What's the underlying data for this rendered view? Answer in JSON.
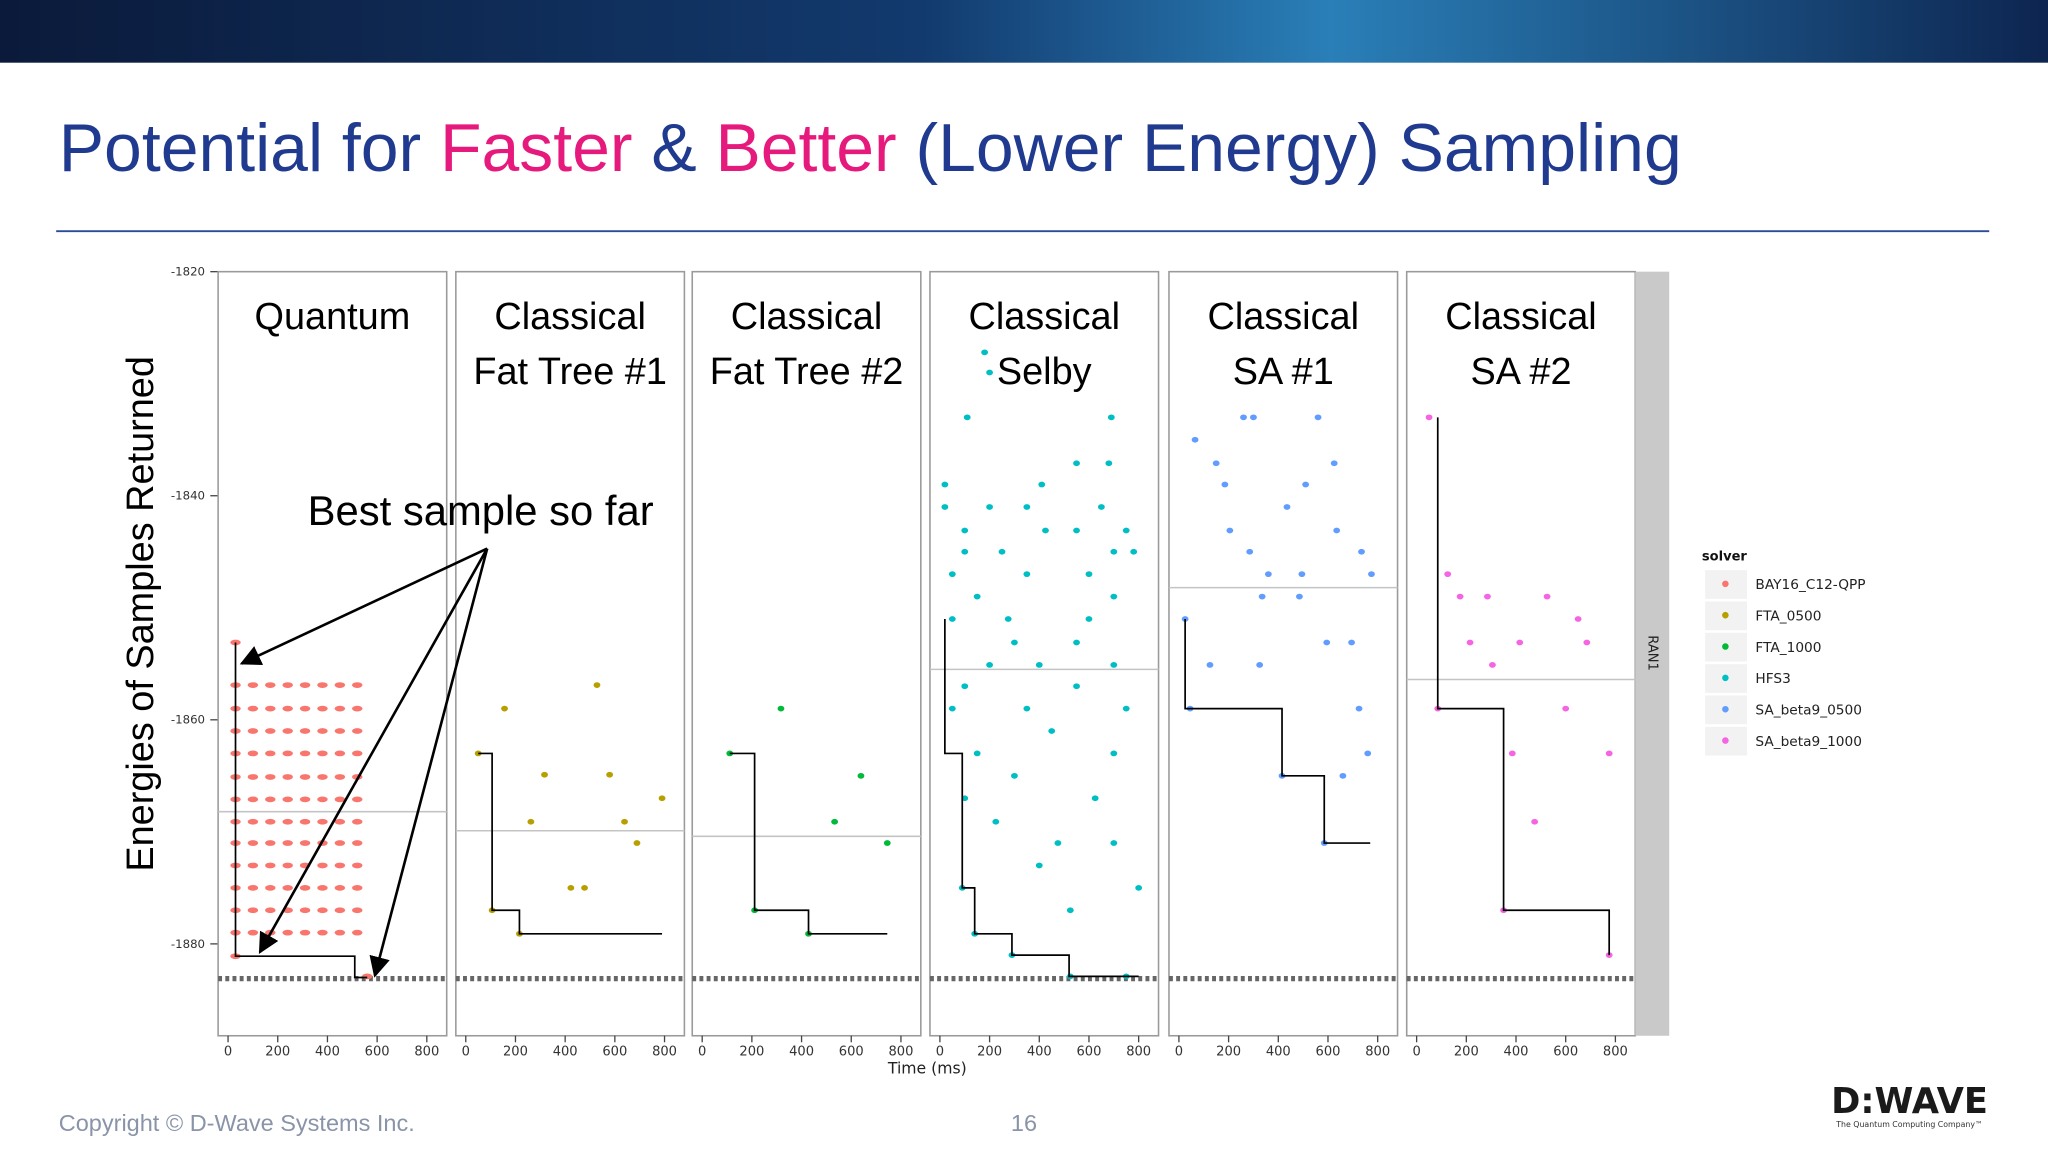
{
  "slide": {
    "title_parts": [
      {
        "text": "Potential for ",
        "color": "#1f3a8f"
      },
      {
        "text": "Faster",
        "color": "#e6197d"
      },
      {
        "text": " & ",
        "color": "#1f3a8f"
      },
      {
        "text": "Better",
        "color": "#e6197d"
      },
      {
        "text": " (Lower Energy) Sampling",
        "color": "#1f3a8f"
      }
    ],
    "copyright": "Copyright © D-Wave Systems Inc.",
    "page_number": "16",
    "logo": "D:WAVE",
    "logo_tagline": "The Quantum Computing Company™"
  },
  "chart_data": {
    "type": "scatter",
    "y_label": "Energies of Samples Returned",
    "x_label": "Time (ms)",
    "legend_title": "solver",
    "strip_label": "RAN1",
    "annotation": "Best sample so far",
    "xlim": [
      -40,
      880
    ],
    "xticks": [
      0,
      200,
      400,
      600,
      800
    ],
    "ylim": [
      -1888.2,
      -1820
    ],
    "yticks": [
      -1820,
      -1840,
      -1860,
      -1880
    ],
    "reference_line": -1883.1,
    "facets": [
      {
        "title_lines": [
          "Quantum"
        ],
        "mean_line": -1868.2,
        "series": [
          {
            "name": "BAY16_C12-QPP",
            "color": "#f8766d",
            "x": [
              30,
              100,
              170,
              240,
              310,
              380,
              450,
              520,
              30,
              100,
              170,
              240,
              310,
              380,
              450,
              520,
              30,
              100,
              170,
              240,
              310,
              380,
              450,
              520,
              30,
              100,
              170,
              240,
              310,
              380,
              450,
              520,
              30,
              100,
              170,
              240,
              310,
              380,
              450,
              520,
              30,
              100,
              170,
              240,
              310,
              380,
              450,
              520,
              30,
              100,
              170,
              240,
              310,
              380,
              450,
              520,
              30,
              100,
              170,
              240,
              310,
              380,
              450,
              520,
              30,
              100,
              170,
              240,
              310,
              380,
              450,
              520,
              30,
              100,
              170,
              240,
              310,
              380,
              450,
              520,
              30,
              100,
              170,
              240,
              310,
              380,
              450,
              520,
              30,
              100,
              170,
              240,
              310,
              380,
              450,
              520,
              30,
              30,
              560
            ],
            "values": [
              -1856.9,
              -1856.9,
              -1856.9,
              -1856.9,
              -1856.9,
              -1856.9,
              -1856.9,
              -1856.9,
              -1859,
              -1859,
              -1859,
              -1859,
              -1859,
              -1859,
              -1859,
              -1859,
              -1861,
              -1861,
              -1861,
              -1861,
              -1861,
              -1861,
              -1861,
              -1861,
              -1863,
              -1863,
              -1863,
              -1863,
              -1863,
              -1863,
              -1863,
              -1863,
              -1865.1,
              -1865.1,
              -1865.1,
              -1865.1,
              -1865.1,
              -1865.1,
              -1865.1,
              -1865.1,
              -1867.1,
              -1867.1,
              -1867.1,
              -1867.1,
              -1867.1,
              -1867.1,
              -1867.1,
              -1867.1,
              -1869.1,
              -1869.1,
              -1869.1,
              -1869.1,
              -1869.1,
              -1869.1,
              -1869.1,
              -1869.1,
              -1871,
              -1871,
              -1871,
              -1871,
              -1871,
              -1871,
              -1871,
              -1871,
              -1873,
              -1873,
              -1873,
              -1873,
              -1873,
              -1873,
              -1873,
              -1873,
              -1875,
              -1875,
              -1875,
              -1875,
              -1875,
              -1875,
              -1875,
              -1875,
              -1877,
              -1877,
              -1877,
              -1877,
              -1877,
              -1877,
              -1877,
              -1877,
              -1879,
              -1879,
              -1879,
              -1879,
              -1879,
              -1879,
              -1879,
              -1879,
              -1853.1,
              -1881.1,
              -1882.9
            ]
          }
        ],
        "step": {
          "x": [
            30,
            30,
            510,
            510,
            560
          ],
          "values": [
            -1853.1,
            -1881.1,
            -1881.1,
            -1883,
            -1883
          ]
        }
      },
      {
        "title_lines": [
          "Classical",
          "Fat Tree #1"
        ],
        "mean_line": -1869.9,
        "series": [
          {
            "name": "FTA_0500",
            "color": "#b79f00",
            "x": [
              50,
              156,
              106,
              216,
              317,
              262,
              528,
              423,
              478,
              639,
              689,
              790,
              579
            ],
            "values": [
              -1863,
              -1859,
              -1877,
              -1879.1,
              -1864.9,
              -1869.1,
              -1856.9,
              -1875,
              -1875,
              -1869.1,
              -1871,
              -1867,
              -1864.9
            ]
          }
        ],
        "step": {
          "x": [
            50,
            106,
            106,
            216,
            216,
            790
          ],
          "values": [
            -1863,
            -1863,
            -1877,
            -1877,
            -1879.1,
            -1879.1
          ]
        }
      },
      {
        "title_lines": [
          "Classical",
          "Fat Tree #2"
        ],
        "mean_line": -1870.4,
        "series": [
          {
            "name": "FTA_1000",
            "color": "#00ba38",
            "x": [
              111,
              317,
              211,
              428,
              639,
              533,
              745
            ],
            "values": [
              -1863,
              -1859,
              -1877,
              -1879.1,
              -1865,
              -1869.1,
              -1871
            ]
          }
        ],
        "step": {
          "x": [
            111,
            211,
            211,
            428,
            428,
            745
          ],
          "values": [
            -1863,
            -1863,
            -1877,
            -1877,
            -1879.1,
            -1879.1
          ]
        }
      },
      {
        "title_lines": [
          "Classical",
          "Selby"
        ],
        "mean_line": -1855.5,
        "series": [
          {
            "name": "HFS3",
            "color": "#00bfc4",
            "x": [
              110,
              180,
              200,
              690,
              550,
              680,
              20,
              410,
              20,
              200,
              350,
              650,
              100,
              425,
              550,
              750,
              100,
              250,
              700,
              780,
              50,
              350,
              600,
              150,
              700,
              50,
              275,
              600,
              300,
              550,
              200,
              400,
              700,
              100,
              550,
              50,
              350,
              750,
              450,
              150,
              700,
              300,
              100,
              625,
              225,
              475,
              700,
              400,
              800,
              525,
              90,
              140,
              290,
              525,
              750
            ],
            "values": [
              -1833,
              -1827.2,
              -1829,
              -1833,
              -1837.1,
              -1837.1,
              -1839,
              -1839,
              -1841,
              -1841,
              -1841,
              -1841,
              -1843.1,
              -1843.1,
              -1843.1,
              -1843.1,
              -1845,
              -1845,
              -1845,
              -1845,
              -1847,
              -1847,
              -1847,
              -1849,
              -1849,
              -1851,
              -1851,
              -1851,
              -1853.1,
              -1853.1,
              -1855.1,
              -1855.1,
              -1855.1,
              -1857,
              -1857,
              -1859,
              -1859,
              -1859,
              -1861,
              -1863,
              -1863,
              -1865,
              -1867,
              -1867,
              -1869.1,
              -1871,
              -1871,
              -1873,
              -1875,
              -1877,
              -1875,
              -1879.1,
              -1881,
              -1882.9,
              -1882.9
            ]
          }
        ],
        "step": {
          "x": [
            20,
            20,
            90,
            90,
            140,
            140,
            290,
            290,
            520,
            520,
            800
          ],
          "values": [
            -1851,
            -1863,
            -1863,
            -1875,
            -1875,
            -1879.1,
            -1879.1,
            -1881,
            -1881,
            -1882.9,
            -1882.9
          ]
        }
      },
      {
        "title_lines": [
          "Classical",
          "SA #1"
        ],
        "mean_line": -1848.2,
        "series": [
          {
            "name": "SA_beta9_0500",
            "color": "#619cff",
            "x": [
              65,
              150,
              185,
              260,
              300,
              560,
              625,
              435,
              510,
              205,
              285,
              735,
              360,
              495,
              775,
              635,
              335,
              485,
              25,
              595,
              695,
              125,
              325,
              45,
              725,
              760,
              660,
              415,
              585
            ],
            "values": [
              -1835,
              -1837.1,
              -1839,
              -1833,
              -1833,
              -1833,
              -1837.1,
              -1841,
              -1839,
              -1843.1,
              -1845,
              -1845,
              -1847,
              -1847,
              -1847,
              -1843.1,
              -1849,
              -1849,
              -1851,
              -1853.1,
              -1853.1,
              -1855.1,
              -1855.1,
              -1859,
              -1859,
              -1863,
              -1865,
              -1865,
              -1871
            ]
          }
        ],
        "step": {
          "x": [
            25,
            25,
            415,
            415,
            585,
            585,
            770
          ],
          "values": [
            -1851,
            -1859,
            -1859,
            -1865,
            -1865,
            -1871,
            -1871
          ]
        }
      },
      {
        "title_lines": [
          "Classical",
          "SA #2"
        ],
        "mean_line": -1856.4,
        "series": [
          {
            "name": "SA_beta9_1000",
            "color": "#f564e3",
            "x": [
              50,
              125,
              175,
              285,
              525,
              215,
              415,
              685,
              650,
              305,
              85,
              600,
              385,
              775,
              475,
              350,
              775
            ],
            "values": [
              -1833,
              -1847,
              -1849,
              -1849,
              -1849,
              -1853.1,
              -1853.1,
              -1853.1,
              -1851,
              -1855.1,
              -1859,
              -1859,
              -1863,
              -1863,
              -1869.1,
              -1877,
              -1881
            ]
          }
        ],
        "step": {
          "x": [
            85,
            85,
            350,
            350,
            775,
            775
          ],
          "values": [
            -1833,
            -1859,
            -1859,
            -1877,
            -1877,
            -1881
          ]
        }
      }
    ]
  }
}
